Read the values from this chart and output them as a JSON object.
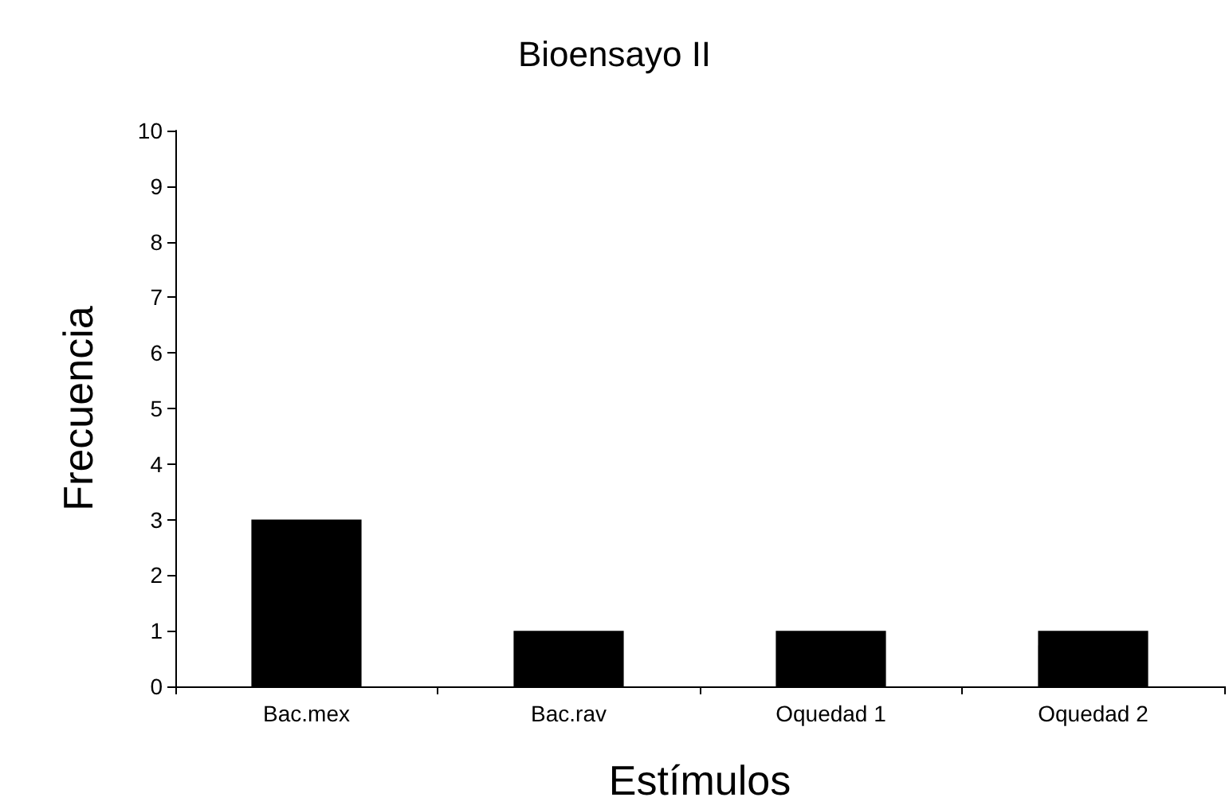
{
  "chart_data": {
    "type": "bar",
    "title": "Bioensayo II",
    "xlabel": "Estímulos",
    "ylabel": "Frecuencia",
    "categories": [
      "Bac.mex",
      "Bac.rav",
      "Oquedad 1",
      "Oquedad 2"
    ],
    "values": [
      3,
      1,
      1,
      1
    ],
    "color": "#000000",
    "ylim": [
      0,
      10
    ],
    "yticks": [
      0,
      1,
      2,
      3,
      4,
      5,
      6,
      7,
      8,
      9,
      10
    ]
  }
}
